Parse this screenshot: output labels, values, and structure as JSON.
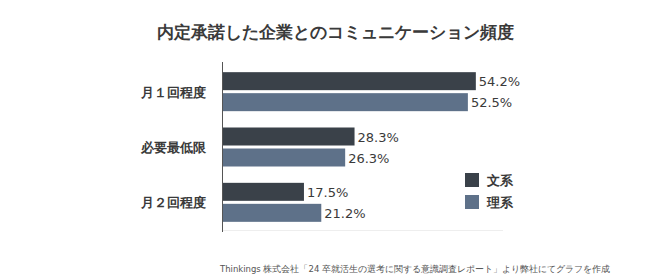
{
  "chart_data": {
    "type": "bar",
    "orientation": "horizontal",
    "title": "内定承諾した企業とのコミュニケーション頻度",
    "categories": [
      "月１回程度",
      "必要最低限",
      "月２回程度"
    ],
    "series": [
      {
        "name": "文系",
        "color": "#3a4149",
        "values": [
          54.2,
          28.3,
          17.5
        ],
        "value_labels": [
          "54.2%",
          "28.3%",
          "17.5%"
        ]
      },
      {
        "name": "理系",
        "color": "#5e7189",
        "values": [
          52.5,
          26.3,
          21.2
        ],
        "value_labels": [
          "52.5%",
          "26.3%",
          "21.2%"
        ]
      }
    ],
    "xlim": [
      0,
      60
    ],
    "data_labels": true,
    "tick_labels": "y",
    "legend": "lower right",
    "grid": false,
    "source": "Thinkings 株式会社「24 卒就活生の選考に関する意識調査レポート」より弊社にてグラフを作成"
  }
}
